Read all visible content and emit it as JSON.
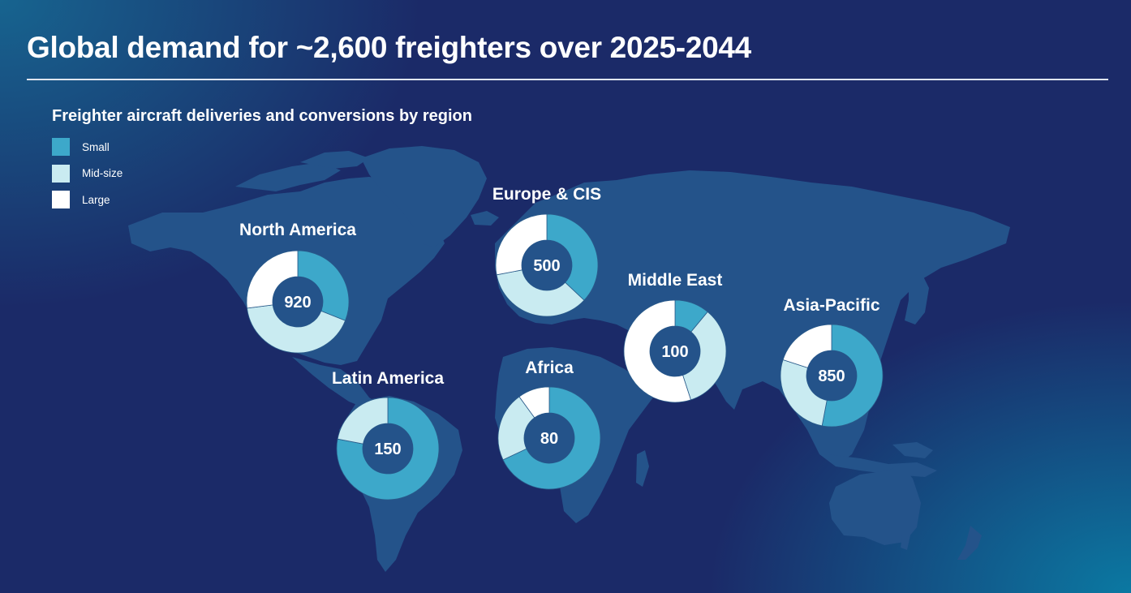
{
  "title": "Global demand for ~2,600 freighters over 2025-2044",
  "chart_data": {
    "type": "pie",
    "subtype": "donut",
    "title": "Freighter aircraft deliveries and conversions by region",
    "legend": {
      "placement": "top-left",
      "entries": [
        {
          "name": "Small",
          "color": "#3da8ca"
        },
        {
          "name": "Mid-size",
          "color": "#c9ebf1"
        },
        {
          "name": "Large",
          "color": "#ffffff"
        }
      ]
    },
    "units": "share of regional total (%)",
    "regions": [
      {
        "id": "north-america",
        "name": "North America",
        "total": "920",
        "shares": {
          "Small": 31,
          "Mid-size": 42,
          "Large": 27
        }
      },
      {
        "id": "europe-cis",
        "name": "Europe & CIS",
        "total": "500",
        "shares": {
          "Small": 37,
          "Mid-size": 35,
          "Large": 28
        }
      },
      {
        "id": "middle-east",
        "name": "Middle East",
        "total": "100",
        "shares": {
          "Small": 11,
          "Mid-size": 34,
          "Large": 55
        }
      },
      {
        "id": "asia-pacific",
        "name": "Asia-Pacific",
        "total": "850",
        "shares": {
          "Small": 53,
          "Mid-size": 27,
          "Large": 20
        }
      },
      {
        "id": "latin-america",
        "name": "Latin America",
        "total": "150",
        "shares": {
          "Small": 78,
          "Mid-size": 22,
          "Large": 0
        }
      },
      {
        "id": "africa",
        "name": "Africa",
        "total": "80",
        "shares": {
          "Small": 68,
          "Mid-size": 22,
          "Large": 10
        }
      }
    ]
  },
  "colors": {
    "land": "#24538a",
    "donut_hole": "#24538a",
    "hole_stroke": "#1b2a68"
  }
}
